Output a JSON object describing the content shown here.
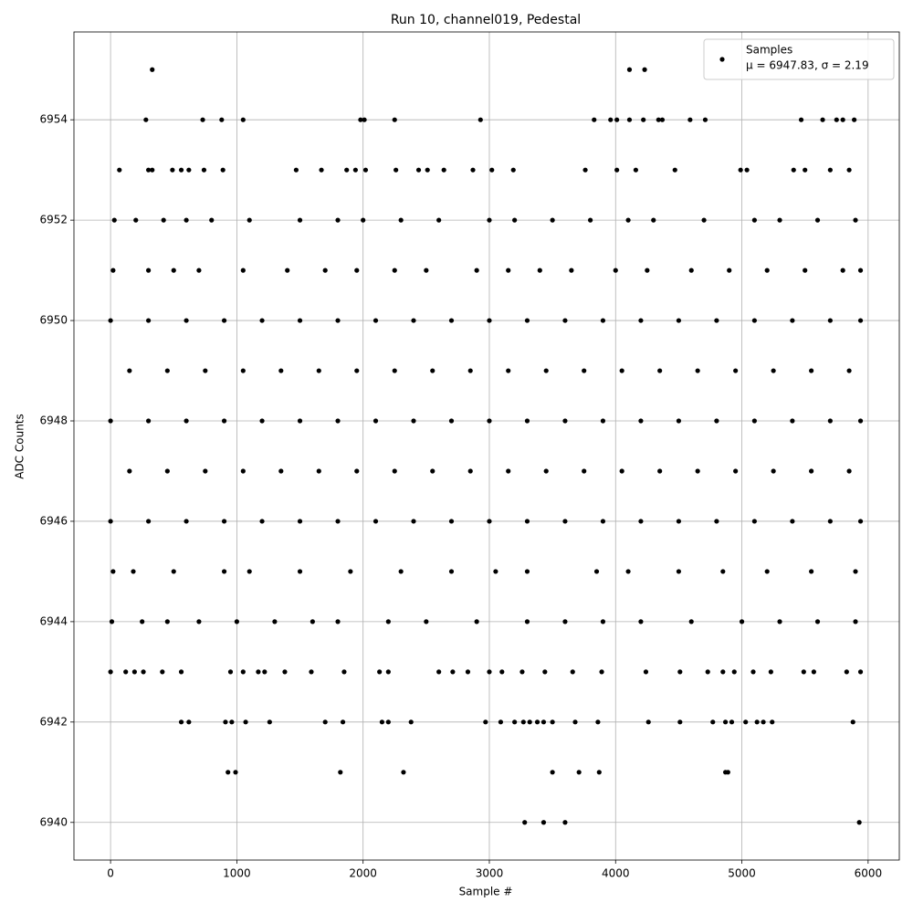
{
  "chart_data": {
    "type": "scatter",
    "title": "Run 10, channel019, Pedestal",
    "xlabel": "Sample #",
    "ylabel": "ADC Counts",
    "xlim": [
      -290,
      6247
    ],
    "ylim": [
      6939.25,
      6955.75
    ],
    "xticks": [
      0,
      1000,
      2000,
      3000,
      4000,
      5000,
      6000
    ],
    "yticks": [
      6940,
      6942,
      6944,
      6946,
      6948,
      6950,
      6952,
      6954
    ],
    "grid": true,
    "legend": "upper right",
    "legend_note": "μ = 6947.83, σ = 2.19",
    "x": [
      330,
      4110,
      4230,
      280,
      730,
      880,
      1050,
      1980,
      2010,
      2250,
      2930,
      3830,
      3960,
      4010,
      4110,
      4220,
      4340,
      4370,
      4590,
      4710,
      5470,
      5640,
      5750,
      5800,
      5890,
      70,
      300,
      330,
      490,
      560,
      620,
      740,
      890,
      1470,
      1670,
      1870,
      1940,
      2020,
      2260,
      2440,
      2510,
      2640,
      2870,
      3020,
      3190,
      3760,
      4010,
      4160,
      4470,
      4990,
      5040,
      5410,
      5500,
      5700,
      5850,
      30,
      200,
      420,
      600,
      800,
      1100,
      1500,
      1800,
      2000,
      2300,
      2600,
      3000,
      3200,
      3500,
      3800,
      4100,
      4300,
      4700,
      5100,
      5300,
      5600,
      5900,
      20,
      300,
      500,
      700,
      1050,
      1400,
      1700,
      1950,
      2250,
      2500,
      2900,
      3150,
      3400,
      3650,
      4000,
      4250,
      4600,
      4900,
      5200,
      5500,
      5800,
      5940,
      0,
      300,
      600,
      900,
      1200,
      1500,
      1800,
      2100,
      2400,
      2700,
      3000,
      3300,
      3600,
      3900,
      4200,
      4500,
      4800,
      5100,
      5400,
      5700,
      5940,
      150,
      450,
      750,
      1050,
      1350,
      1650,
      1950,
      2250,
      2550,
      2850,
      3150,
      3450,
      3750,
      4050,
      4350,
      4650,
      4950,
      5250,
      5550,
      5850,
      0,
      300,
      600,
      900,
      1200,
      1500,
      1800,
      2100,
      2400,
      2700,
      3000,
      3300,
      3600,
      3900,
      4200,
      4500,
      4800,
      5100,
      5400,
      5700,
      5940,
      150,
      450,
      750,
      1050,
      1350,
      1650,
      1950,
      2250,
      2550,
      2850,
      3150,
      3450,
      3750,
      4050,
      4350,
      4650,
      4950,
      5250,
      5550,
      5850,
      0,
      300,
      600,
      900,
      1200,
      1500,
      1800,
      2100,
      2400,
      2700,
      3000,
      3300,
      3600,
      3900,
      4200,
      4500,
      4800,
      5100,
      5400,
      5700,
      5940,
      20,
      180,
      500,
      900,
      1100,
      1500,
      1900,
      2300,
      2700,
      3050,
      3300,
      3850,
      4100,
      4500,
      4850,
      5200,
      5550,
      5900,
      10,
      250,
      450,
      700,
      1000,
      1300,
      1600,
      1800,
      2200,
      2500,
      2900,
      3300,
      3600,
      3900,
      4200,
      4600,
      5000,
      5300,
      5600,
      5900,
      0,
      120,
      190,
      260,
      410,
      560,
      950,
      1050,
      1170,
      1220,
      1380,
      1590,
      1850,
      2130,
      2200,
      2600,
      2710,
      2830,
      3000,
      3100,
      3260,
      3440,
      3660,
      3890,
      4240,
      4510,
      4730,
      4850,
      4940,
      5090,
      5230,
      5490,
      5570,
      5830,
      5940,
      560,
      620,
      910,
      960,
      1070,
      1260,
      1700,
      1840,
      2150,
      2200,
      2380,
      2970,
      3090,
      3200,
      3270,
      3320,
      3380,
      3430,
      3500,
      3680,
      3860,
      4260,
      4510,
      4770,
      4870,
      4920,
      5030,
      5120,
      5170,
      5240,
      5880,
      930,
      990,
      1820,
      2320,
      3500,
      3710,
      3870,
      4870,
      4890,
      3280,
      3430,
      3600,
      5930
    ],
    "series": [
      {
        "name": "Samples",
        "color": "#000000",
        "values": [
          6955,
          6955,
          6955,
          6954,
          6954,
          6954,
          6954,
          6954,
          6954,
          6954,
          6954,
          6954,
          6954,
          6954,
          6954,
          6954,
          6954,
          6954,
          6954,
          6954,
          6954,
          6954,
          6954,
          6954,
          6954,
          6953,
          6953,
          6953,
          6953,
          6953,
          6953,
          6953,
          6953,
          6953,
          6953,
          6953,
          6953,
          6953,
          6953,
          6953,
          6953,
          6953,
          6953,
          6953,
          6953,
          6953,
          6953,
          6953,
          6953,
          6953,
          6953,
          6953,
          6953,
          6953,
          6953,
          6952,
          6952,
          6952,
          6952,
          6952,
          6952,
          6952,
          6952,
          6952,
          6952,
          6952,
          6952,
          6952,
          6952,
          6952,
          6952,
          6952,
          6952,
          6952,
          6952,
          6952,
          6952,
          6951,
          6951,
          6951,
          6951,
          6951,
          6951,
          6951,
          6951,
          6951,
          6951,
          6951,
          6951,
          6951,
          6951,
          6951,
          6951,
          6951,
          6951,
          6951,
          6951,
          6951,
          6951,
          6950,
          6950,
          6950,
          6950,
          6950,
          6950,
          6950,
          6950,
          6950,
          6950,
          6950,
          6950,
          6950,
          6950,
          6950,
          6950,
          6950,
          6950,
          6950,
          6950,
          6950,
          6949,
          6949,
          6949,
          6949,
          6949,
          6949,
          6949,
          6949,
          6949,
          6949,
          6949,
          6949,
          6949,
          6949,
          6949,
          6949,
          6949,
          6949,
          6949,
          6949,
          6948,
          6948,
          6948,
          6948,
          6948,
          6948,
          6948,
          6948,
          6948,
          6948,
          6948,
          6948,
          6948,
          6948,
          6948,
          6948,
          6948,
          6948,
          6948,
          6948,
          6948,
          6947,
          6947,
          6947,
          6947,
          6947,
          6947,
          6947,
          6947,
          6947,
          6947,
          6947,
          6947,
          6947,
          6947,
          6947,
          6947,
          6947,
          6947,
          6947,
          6947,
          6946,
          6946,
          6946,
          6946,
          6946,
          6946,
          6946,
          6946,
          6946,
          6946,
          6946,
          6946,
          6946,
          6946,
          6946,
          6946,
          6946,
          6946,
          6946,
          6946,
          6946,
          6945,
          6945,
          6945,
          6945,
          6945,
          6945,
          6945,
          6945,
          6945,
          6945,
          6945,
          6945,
          6945,
          6945,
          6945,
          6945,
          6945,
          6945,
          6944,
          6944,
          6944,
          6944,
          6944,
          6944,
          6944,
          6944,
          6944,
          6944,
          6944,
          6944,
          6944,
          6944,
          6944,
          6944,
          6944,
          6944,
          6944,
          6944,
          6943,
          6943,
          6943,
          6943,
          6943,
          6943,
          6943,
          6943,
          6943,
          6943,
          6943,
          6943,
          6943,
          6943,
          6943,
          6943,
          6943,
          6943,
          6943,
          6943,
          6943,
          6943,
          6943,
          6943,
          6943,
          6943,
          6943,
          6943,
          6943,
          6943,
          6943,
          6943,
          6943,
          6943,
          6943,
          6942,
          6942,
          6942,
          6942,
          6942,
          6942,
          6942,
          6942,
          6942,
          6942,
          6942,
          6942,
          6942,
          6942,
          6942,
          6942,
          6942,
          6942,
          6942,
          6942,
          6942,
          6942,
          6942,
          6942,
          6942,
          6942,
          6942,
          6942,
          6942,
          6942,
          6942,
          6941,
          6941,
          6941,
          6941,
          6941,
          6941,
          6941,
          6941,
          6941,
          6940,
          6940,
          6940,
          6940
        ]
      }
    ]
  }
}
